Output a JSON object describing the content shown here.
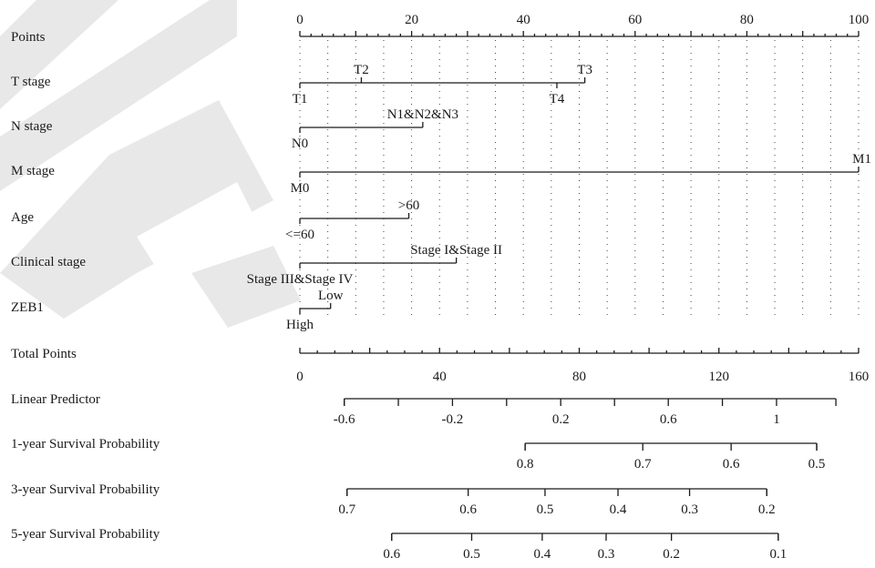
{
  "chart_data": {
    "type": "nomogram",
    "points_axis": {
      "label": "Points",
      "range": [
        0,
        100
      ],
      "ticks": [
        0,
        20,
        40,
        60,
        80,
        100
      ]
    },
    "variables": [
      {
        "label": "T stage",
        "levels": [
          {
            "name": "T1",
            "points": 0,
            "side": "below"
          },
          {
            "name": "T2",
            "points": 11,
            "side": "above"
          },
          {
            "name": "T3",
            "points": 51,
            "side": "above"
          },
          {
            "name": "T4",
            "points": 46,
            "side": "below"
          }
        ]
      },
      {
        "label": "N stage",
        "levels": [
          {
            "name": "N0",
            "points": 0,
            "side": "below"
          },
          {
            "name": "N1&N2&N3",
            "points": 22,
            "side": "above"
          }
        ]
      },
      {
        "label": "M stage",
        "levels": [
          {
            "name": "M0",
            "points": 0,
            "side": "below"
          },
          {
            "name": "M1",
            "points": 100,
            "side": "above"
          }
        ]
      },
      {
        "label": "Age",
        "levels": [
          {
            "name": "<=60",
            "points": 0,
            "side": "below"
          },
          {
            "name": ">60",
            "points": 19.5,
            "side": "above"
          }
        ]
      },
      {
        "label": "Clinical stage",
        "levels": [
          {
            "name": "Stage III&Stage IV",
            "points": 0,
            "side": "below"
          },
          {
            "name": "Stage I&Stage II",
            "points": 28,
            "side": "above"
          }
        ]
      },
      {
        "label": "ZEB1",
        "levels": [
          {
            "name": "High",
            "points": 0,
            "side": "below"
          },
          {
            "name": "Low",
            "points": 5.5,
            "side": "above"
          }
        ]
      }
    ],
    "total_points_axis": {
      "label": "Total Points",
      "range": [
        0,
        160
      ],
      "ticks": [
        0,
        40,
        80,
        120,
        160
      ]
    },
    "outcome_scales": [
      {
        "label": "Linear Predictor",
        "ticks": [
          {
            "value": "-0.6",
            "total": 12.7
          },
          {
            "value": "-0.2",
            "total": 43.7
          },
          {
            "value": "0.2",
            "total": 74.7
          },
          {
            "value": "0.6",
            "total": 105.5
          },
          {
            "value": "1",
            "total": 136.5
          }
        ],
        "axis_range_total": [
          12.7,
          153.5
        ],
        "minor_ticks_total": [
          28.2,
          59.2,
          90.1,
          121.0
        ]
      },
      {
        "label": "1-year Survival Probability",
        "ticks": [
          {
            "value": "0.8",
            "total": 64.5
          },
          {
            "value": "0.7",
            "total": 98.2
          },
          {
            "value": "0.6",
            "total": 123.5
          },
          {
            "value": "0.5",
            "total": 148.0
          }
        ],
        "axis_range_total": [
          64.5,
          148.0
        ]
      },
      {
        "label": "3-year Survival Probability",
        "ticks": [
          {
            "value": "0.7",
            "total": 13.5
          },
          {
            "value": "0.6",
            "total": 48.2
          },
          {
            "value": "0.5",
            "total": 70.2
          },
          {
            "value": "0.4",
            "total": 91.1
          },
          {
            "value": "0.3",
            "total": 111.6
          },
          {
            "value": "0.2",
            "total": 133.7
          }
        ],
        "axis_range_total": [
          13.5,
          133.7
        ]
      },
      {
        "label": "5-year Survival Probability",
        "ticks": [
          {
            "value": "0.6",
            "total": 26.3
          },
          {
            "value": "0.5",
            "total": 49.2
          },
          {
            "value": "0.4",
            "total": 69.4
          },
          {
            "value": "0.3",
            "total": 87.7
          },
          {
            "value": "0.2",
            "total": 106.4
          },
          {
            "value": "0.1",
            "total": 137.0
          }
        ],
        "axis_range_total": [
          26.3,
          137.0
        ]
      }
    ],
    "grid": true
  },
  "colors": {
    "ink": "#1a1a1a",
    "watermark": "#d9d9d9"
  }
}
